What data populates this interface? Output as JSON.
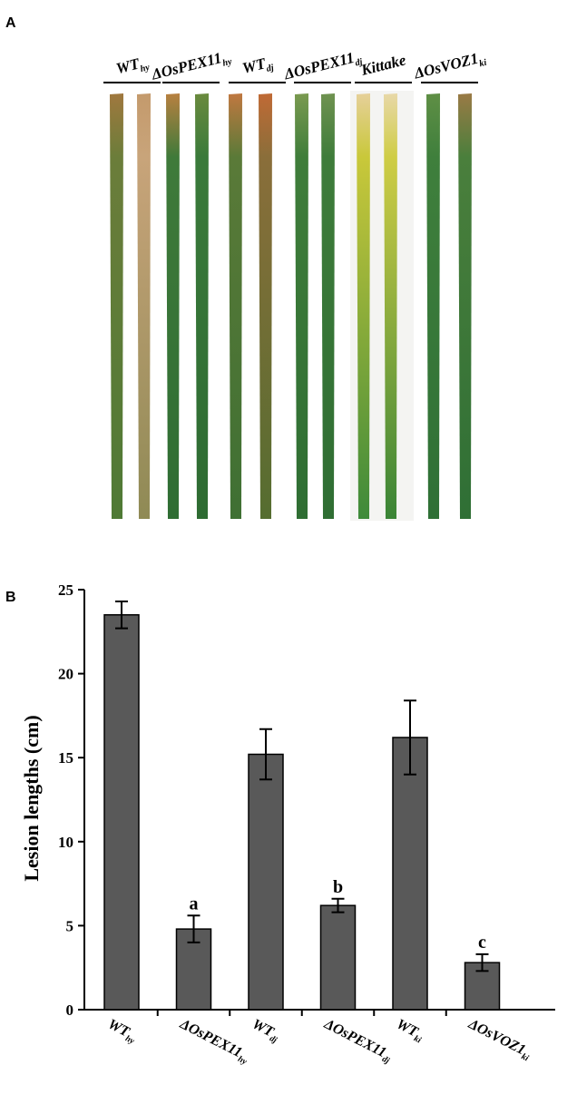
{
  "panel_a": {
    "label": "A",
    "groups": [
      {
        "main": "WT",
        "sub": "hy"
      },
      {
        "main": "ΔOsPEX11",
        "sub": "hy"
      },
      {
        "main": "WT",
        "sub": "dj"
      },
      {
        "main": "ΔOsPEX11",
        "sub": "dj"
      },
      {
        "main": "Kittake",
        "sub": null
      },
      {
        "main": "ΔOsVOZ1",
        "sub": "ki"
      }
    ]
  },
  "chart_data": {
    "type": "bar",
    "panel_label": "B",
    "y_label": "Lesion lengths (cm)",
    "categories": [
      {
        "main": "WT",
        "sub": "hy"
      },
      {
        "main": "ΔOsPEX11",
        "sub": "hy"
      },
      {
        "main": "WT",
        "sub": "dj"
      },
      {
        "main": "ΔOsPEX11",
        "sub": "dj"
      },
      {
        "main": "WT",
        "sub": "ki"
      },
      {
        "main": "ΔOsVOZ1",
        "sub": "ki"
      }
    ],
    "values": [
      23.5,
      4.8,
      15.2,
      6.2,
      16.2,
      2.8
    ],
    "errors": [
      0.8,
      0.8,
      1.5,
      0.4,
      2.2,
      0.5
    ],
    "significance": [
      null,
      "a",
      null,
      "b",
      null,
      "c"
    ],
    "color": "#595959",
    "ylim": [
      0,
      25
    ],
    "yticks": [
      0,
      5,
      10,
      15,
      20,
      25
    ]
  }
}
